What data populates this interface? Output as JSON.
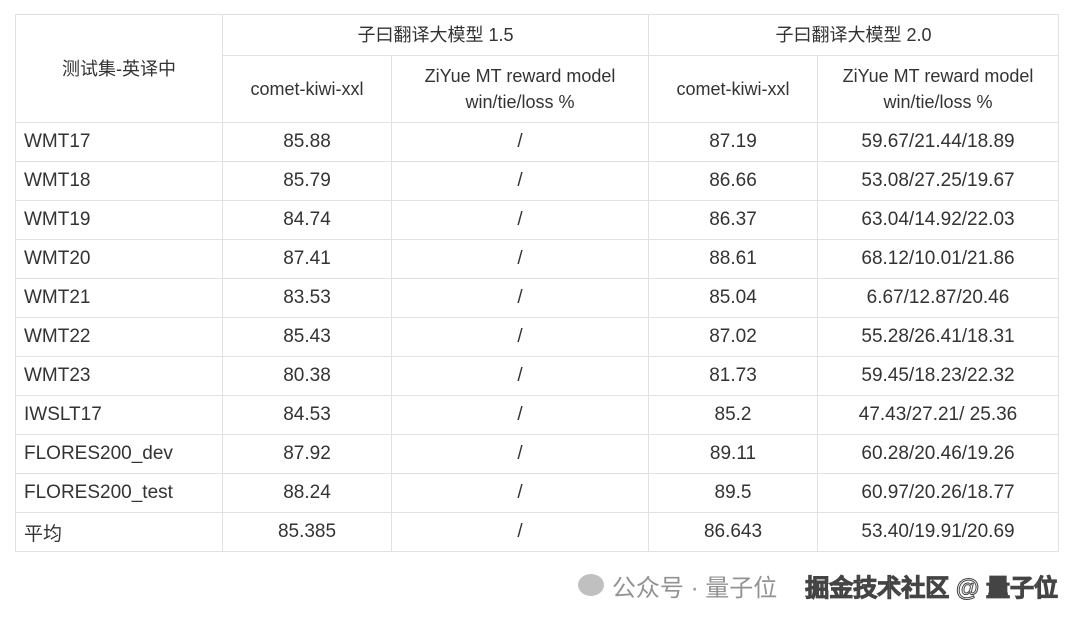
{
  "header": {
    "row_label": "测试集-英译中",
    "group1": "子曰翻译大模型 1.5",
    "group2": "子曰翻译大模型 2.0",
    "col_comet": "comet-kiwi-xxl",
    "col_reward_line1": "ZiYue MT reward model",
    "col_reward_line2": "win/tie/loss %"
  },
  "rows": [
    {
      "name": "WMT17",
      "v15_comet": "85.88",
      "v15_reward": "/",
      "v20_comet": "87.19",
      "v20_reward": "59.67/21.44/18.89"
    },
    {
      "name": "WMT18",
      "v15_comet": "85.79",
      "v15_reward": "/",
      "v20_comet": "86.66",
      "v20_reward": "53.08/27.25/19.67"
    },
    {
      "name": "WMT19",
      "v15_comet": "84.74",
      "v15_reward": "/",
      "v20_comet": "86.37",
      "v20_reward": "63.04/14.92/22.03"
    },
    {
      "name": "WMT20",
      "v15_comet": "87.41",
      "v15_reward": "/",
      "v20_comet": "88.61",
      "v20_reward": "68.12/10.01/21.86"
    },
    {
      "name": "WMT21",
      "v15_comet": "83.53",
      "v15_reward": "/",
      "v20_comet": "85.04",
      "v20_reward": "6.67/12.87/20.46"
    },
    {
      "name": "WMT22",
      "v15_comet": "85.43",
      "v15_reward": "/",
      "v20_comet": "87.02",
      "v20_reward": "55.28/26.41/18.31"
    },
    {
      "name": "WMT23",
      "v15_comet": "80.38",
      "v15_reward": "/",
      "v20_comet": "81.73",
      "v20_reward": "59.45/18.23/22.32"
    },
    {
      "name": "IWSLT17",
      "v15_comet": "84.53",
      "v15_reward": "/",
      "v20_comet": "85.2",
      "v20_reward": "47.43/27.21/ 25.36"
    },
    {
      "name": "FLORES200_dev",
      "v15_comet": "87.92",
      "v15_reward": "/",
      "v20_comet": "89.11",
      "v20_reward": "60.28/20.46/19.26"
    },
    {
      "name": "FLORES200_test",
      "v15_comet": "88.24",
      "v15_reward": "/",
      "v20_comet": "89.5",
      "v20_reward": "60.97/20.26/18.77"
    },
    {
      "name": "平均",
      "v15_comet": "85.385",
      "v15_reward": "/",
      "v20_comet": "86.643",
      "v20_reward": "53.40/19.91/20.69"
    }
  ],
  "watermarks": {
    "wechat": "公众号 · 量子位",
    "juejin": "掘金技术社区 @ 量子位"
  }
}
